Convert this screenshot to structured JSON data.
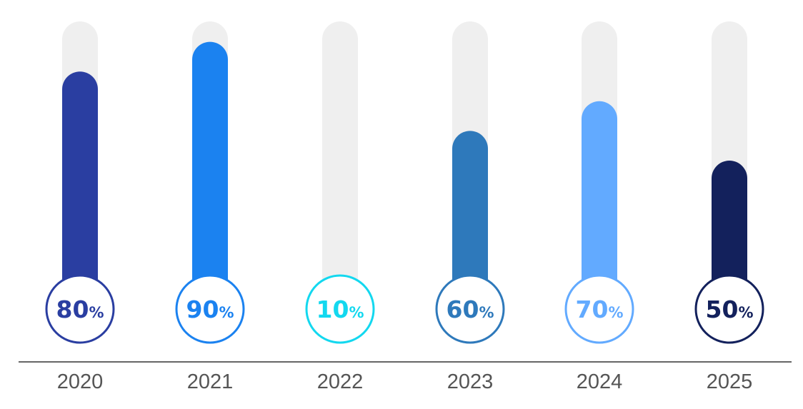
{
  "chart_data": {
    "type": "bar",
    "categories": [
      "2020",
      "2021",
      "2022",
      "2023",
      "2024",
      "2025"
    ],
    "values": [
      80,
      90,
      10,
      60,
      70,
      50
    ],
    "value_suffix": "%",
    "ylim": [
      0,
      100
    ],
    "colors": [
      "#2a3ea1",
      "#1b82f0",
      "#13d8ef",
      "#2e79bb",
      "#62aaff",
      "#13215c"
    ],
    "track_color": "#efefef",
    "axis_color": "#333333",
    "label_color": "#555555",
    "grid": false,
    "legend": "none"
  }
}
